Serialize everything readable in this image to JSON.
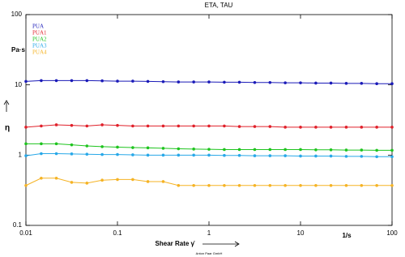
{
  "chart_data": {
    "type": "line",
    "title": "ETA, TAU",
    "y_unit": "Pa·s",
    "y_symbol": "η",
    "x_label": "Shear Rate γ̇",
    "x_unit": "1/s",
    "footer": "Anton Paar GmbH",
    "x": [
      0.01,
      0.0147,
      0.0215,
      0.0316,
      0.0464,
      0.0681,
      0.1,
      0.147,
      0.215,
      0.316,
      0.464,
      0.681,
      1,
      1.47,
      2.15,
      3.16,
      4.64,
      6.81,
      10,
      14.7,
      21.5,
      31.6,
      46.4,
      68.1,
      100
    ],
    "series": [
      {
        "name": "PUA",
        "color": "#1a1ab8",
        "values": [
          11.2,
          11.5,
          11.5,
          11.5,
          11.5,
          11.4,
          11.3,
          11.3,
          11.2,
          11.1,
          11.0,
          11.0,
          11.0,
          10.9,
          10.9,
          10.8,
          10.8,
          10.7,
          10.7,
          10.6,
          10.6,
          10.5,
          10.5,
          10.4,
          10.4
        ]
      },
      {
        "name": "PUA1",
        "color": "#e0202a",
        "values": [
          2.5,
          2.6,
          2.7,
          2.65,
          2.6,
          2.7,
          2.65,
          2.6,
          2.6,
          2.6,
          2.6,
          2.6,
          2.6,
          2.6,
          2.55,
          2.55,
          2.55,
          2.5,
          2.5,
          2.5,
          2.5,
          2.5,
          2.5,
          2.5,
          2.5
        ]
      },
      {
        "name": "PUA2",
        "color": "#1ec41e",
        "values": [
          1.45,
          1.45,
          1.45,
          1.4,
          1.35,
          1.32,
          1.3,
          1.28,
          1.27,
          1.25,
          1.23,
          1.22,
          1.21,
          1.2,
          1.2,
          1.2,
          1.2,
          1.2,
          1.2,
          1.19,
          1.19,
          1.18,
          1.18,
          1.17,
          1.17
        ]
      },
      {
        "name": "PUA3",
        "color": "#28a8e8",
        "values": [
          0.98,
          1.05,
          1.05,
          1.04,
          1.03,
          1.02,
          1.02,
          1.01,
          1.0,
          1.0,
          1.0,
          1.0,
          1.0,
          0.99,
          0.99,
          0.98,
          0.98,
          0.98,
          0.97,
          0.97,
          0.97,
          0.96,
          0.96,
          0.95,
          0.95
        ]
      },
      {
        "name": "PUA4",
        "color": "#f5b324",
        "values": [
          0.37,
          0.47,
          0.47,
          0.41,
          0.4,
          0.44,
          0.45,
          0.45,
          0.42,
          0.42,
          0.37,
          0.37,
          0.37,
          0.37,
          0.37,
          0.37,
          0.37,
          0.37,
          0.37,
          0.37,
          0.37,
          0.37,
          0.37,
          0.37,
          0.37
        ]
      }
    ],
    "xlim": [
      0.01,
      100
    ],
    "ylim": [
      0.1,
      100
    ],
    "xticks": [
      0.01,
      0.1,
      1,
      10,
      100
    ],
    "yticks": [
      0.1,
      1,
      10,
      100
    ],
    "log_x": true,
    "log_y": true,
    "grid": false,
    "legend": "top-left"
  }
}
